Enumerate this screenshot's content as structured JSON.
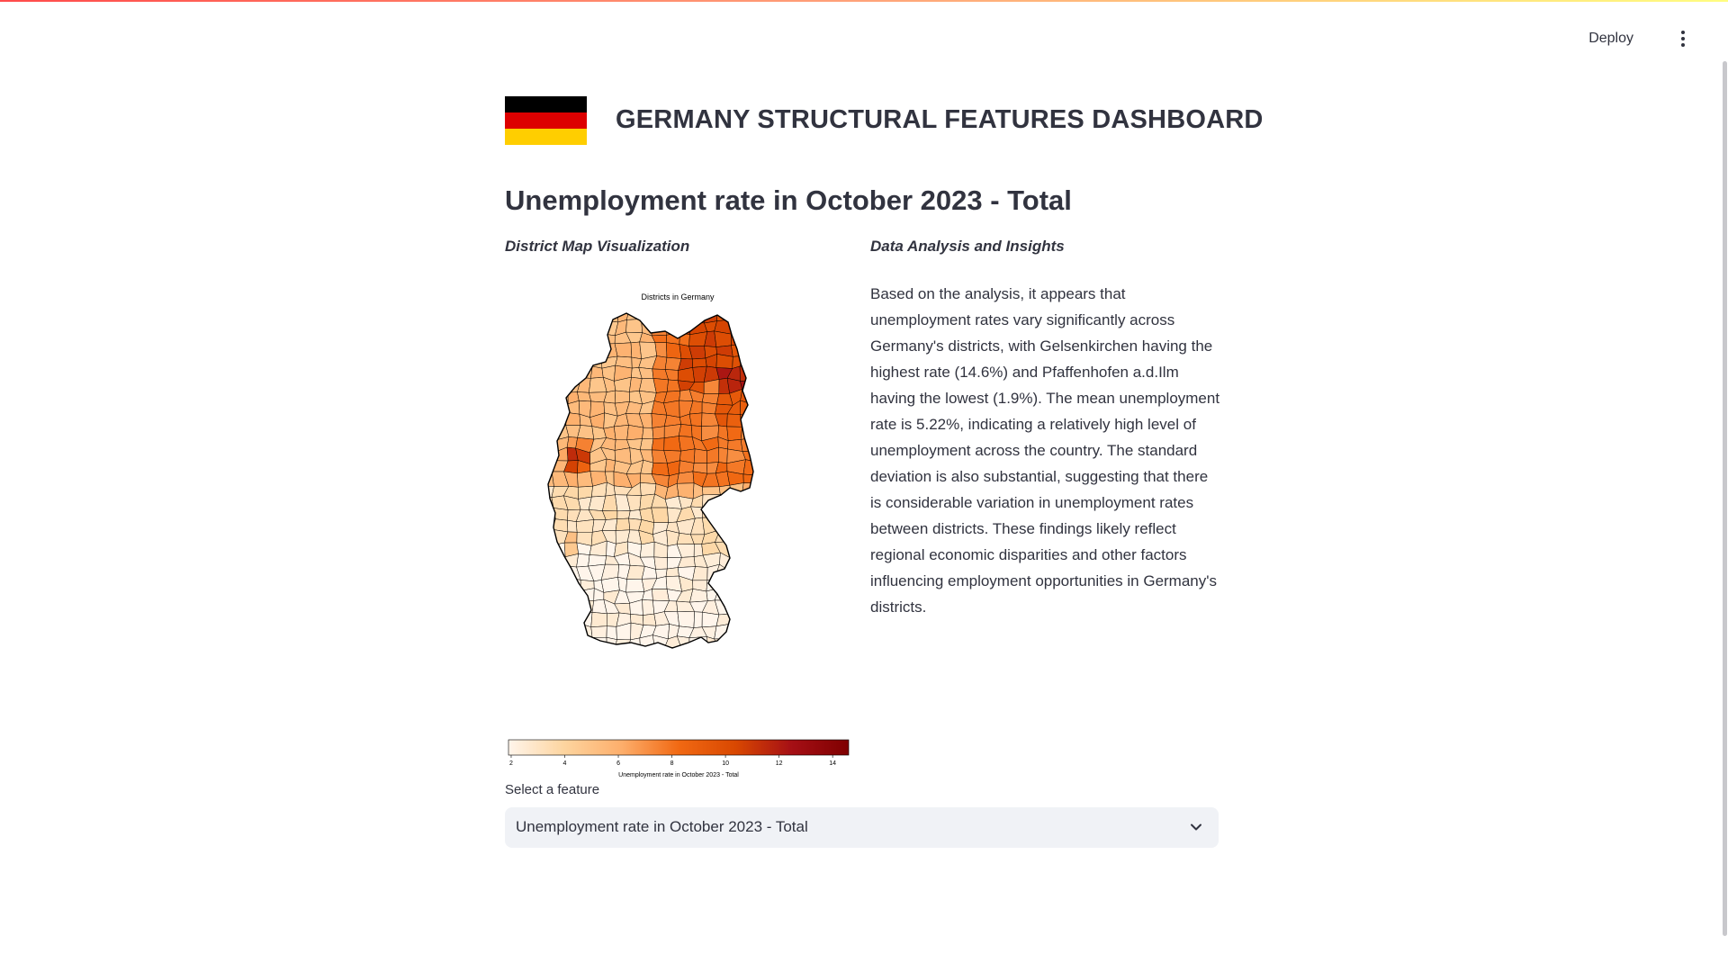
{
  "header": {
    "deploy_label": "Deploy",
    "menu_icon": "more-vertical-icon"
  },
  "dashboard": {
    "title": "GERMANY STRUCTURAL FEATURES DASHBOARD",
    "flag_colors": [
      "#000000",
      "#dd0000",
      "#ffce00"
    ],
    "feature_heading": "Unemployment rate in October 2023 - Total"
  },
  "left_column": {
    "heading": "District Map Visualization"
  },
  "right_column": {
    "heading": "Data Analysis and Insights",
    "text": "Based on the analysis, it appears that unemployment rates vary significantly across Germany's districts, with Gelsenkirchen having the highest rate (14.6%) and Pfaffenhofen a.d.Ilm having the lowest (1.9%). The mean unemployment rate is 5.22%, indicating a relatively high level of unemployment across the country. The standard deviation is also substantial, suggesting that there is considerable variation in unemployment rates between districts. These findings likely reflect regional economic disparities and other factors influencing employment opportunities in Germany's districts."
  },
  "map": {
    "title": "Districts in Germany",
    "colorbar_label": "Unemployment rate in October 2023 - Total",
    "colorbar_ticks": [
      "2",
      "4",
      "6",
      "8",
      "10",
      "12",
      "14"
    ],
    "colorbar_range": [
      1.9,
      14.6
    ],
    "colormap": [
      "#fff5eb",
      "#fdd49e",
      "#fdae6b",
      "#f16913",
      "#d94801",
      "#a50f15",
      "#7f0000"
    ]
  },
  "select": {
    "label": "Select a feature",
    "value": "Unemployment rate in October 2023 - Total",
    "chevron_icon": "chevron-down-icon"
  },
  "colors": {
    "text": "#31333f",
    "select_bg": "#f0f2f6",
    "district_border": "#000000"
  }
}
